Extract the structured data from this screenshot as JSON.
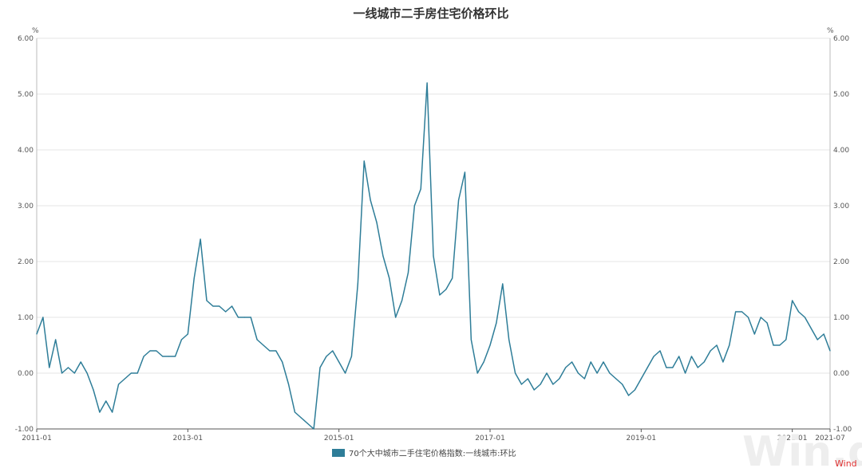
{
  "chart_data": {
    "type": "line",
    "title": "一线城市二手房住宅价格环比",
    "unit_left": "%",
    "unit_right": "%",
    "ylim": [
      -1,
      6
    ],
    "yticks": [
      "-1.00",
      "0.00",
      "1.00",
      "2.00",
      "3.00",
      "4.00",
      "5.00",
      "6.00"
    ],
    "xlim": [
      "2011-01",
      "2021-07"
    ],
    "xticks": [
      "2011-01",
      "2013-01",
      "2015-01",
      "2017-01",
      "2019-01",
      "2021-01",
      "2021-07"
    ],
    "grid": true,
    "legend_position": "bottom-center",
    "series": [
      {
        "name": "70个大中城市二手住宅价格指数:一线城市:环比",
        "color": "#2e7d98",
        "start": "2011-01",
        "frequency": "monthly",
        "values": [
          0.7,
          1.0,
          0.1,
          0.6,
          0.0,
          0.1,
          0.0,
          0.2,
          0.0,
          -0.3,
          -0.7,
          -0.5,
          -0.7,
          -0.2,
          -0.1,
          0.0,
          0.0,
          0.3,
          0.4,
          0.4,
          0.3,
          0.3,
          0.3,
          0.6,
          0.7,
          1.7,
          2.4,
          1.3,
          1.2,
          1.2,
          1.1,
          1.2,
          1.0,
          1.0,
          1.0,
          0.6,
          0.5,
          0.4,
          0.4,
          0.2,
          -0.2,
          -0.7,
          -0.8,
          -0.9,
          -1.0,
          0.1,
          0.3,
          0.4,
          0.2,
          0.0,
          0.3,
          1.6,
          3.8,
          3.1,
          2.7,
          2.1,
          1.7,
          1.0,
          1.3,
          1.8,
          3.0,
          3.3,
          5.2,
          2.1,
          1.4,
          1.5,
          1.7,
          3.1,
          3.6,
          0.6,
          0.0,
          0.2,
          0.5,
          0.9,
          1.6,
          0.6,
          0.0,
          -0.2,
          -0.1,
          -0.3,
          -0.2,
          0.0,
          -0.2,
          -0.1,
          0.1,
          0.2,
          0.0,
          -0.1,
          0.2,
          0.0,
          0.2,
          0.0,
          -0.1,
          -0.2,
          -0.4,
          -0.3,
          -0.1,
          0.1,
          0.3,
          0.4,
          0.1,
          0.1,
          0.3,
          0.0,
          0.3,
          0.1,
          0.2,
          0.4,
          0.5,
          0.2,
          0.5,
          1.1,
          1.1,
          1.0,
          0.7,
          1.0,
          0.9,
          0.5,
          0.5,
          0.6,
          1.3,
          1.1,
          1.0,
          0.8,
          0.6,
          0.7,
          0.4
        ]
      }
    ]
  },
  "watermark": {
    "logo_text": "Win.d",
    "brand": "Wind"
  }
}
